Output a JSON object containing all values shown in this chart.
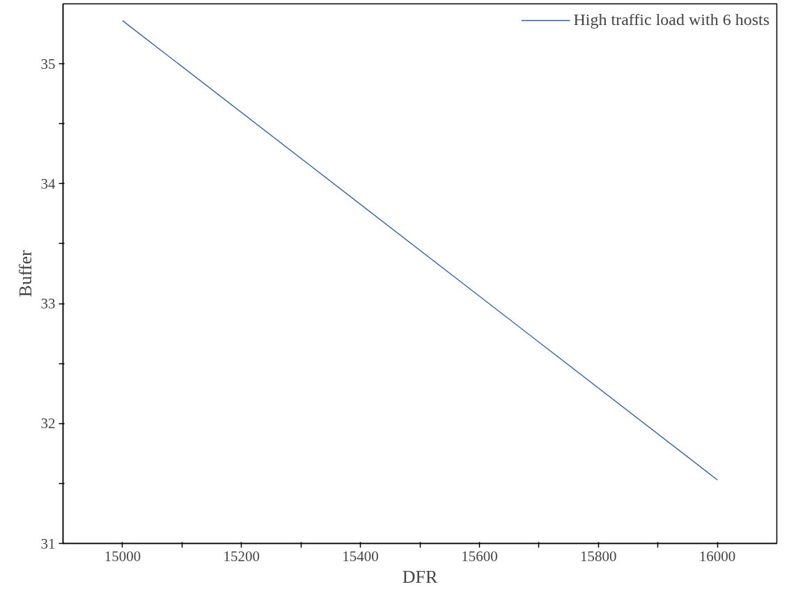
{
  "chart_data": {
    "type": "line",
    "xlabel": "DFR",
    "ylabel": "Buffer",
    "x": [
      15000,
      16000
    ],
    "series": [
      {
        "name": "High traffic load with 6 hosts",
        "color": "#2a5caa",
        "values": [
          35.36,
          31.53
        ]
      }
    ],
    "xlim": [
      14900,
      16100
    ],
    "ylim": [
      31,
      35.5
    ],
    "xticks": [
      15000,
      {
        "value": 15100,
        "label": null
      },
      15200,
      {
        "value": 15300,
        "label": null
      },
      15400,
      {
        "value": 15500,
        "label": null
      },
      15600,
      {
        "value": 15700,
        "label": null
      },
      15800,
      {
        "value": 15900,
        "label": null
      },
      16000
    ],
    "yticks": [
      31,
      {
        "value": 31.5,
        "label": null
      },
      32,
      {
        "value": 32.5,
        "label": null
      },
      33,
      {
        "value": 33.5,
        "label": null
      },
      34,
      {
        "value": 34.5,
        "label": null
      },
      35
    ],
    "grid": false,
    "legend": "top right",
    "marker": "none",
    "line_style": "solid"
  }
}
